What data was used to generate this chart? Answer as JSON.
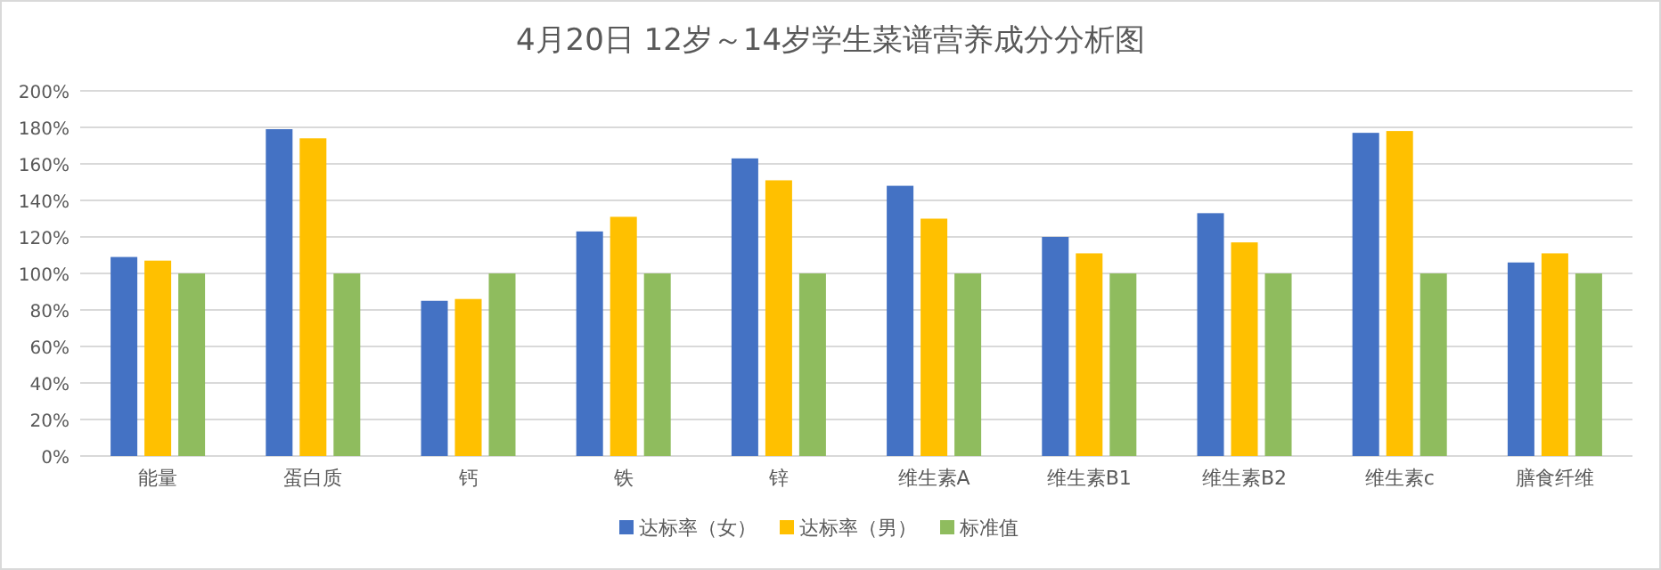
{
  "chart_data": {
    "type": "bar",
    "title": "4月20日 12岁～14岁学生菜谱营养成分分析图",
    "categories": [
      "能量",
      "蛋白质",
      "钙",
      "铁",
      "锌",
      "维生素A",
      "维生素B1",
      "维生素B2",
      "维生素c",
      "膳食纤维"
    ],
    "series": [
      {
        "name": "达标率（女）",
        "color": "#4472c4",
        "values": [
          109,
          179,
          85,
          123,
          163,
          148,
          120,
          133,
          177,
          106
        ]
      },
      {
        "name": "达标率（男）",
        "color": "#ffc000",
        "values": [
          107,
          174,
          86,
          131,
          151,
          130,
          111,
          117,
          178,
          111
        ]
      },
      {
        "name": "标准值",
        "color": "#8fbc5e",
        "values": [
          100,
          100,
          100,
          100,
          100,
          100,
          100,
          100,
          100,
          100
        ]
      }
    ],
    "ylim": [
      0,
      200
    ],
    "yticks": [
      {
        "value": 0,
        "label": "0%"
      },
      {
        "value": 20,
        "label": "20%"
      },
      {
        "value": 40,
        "label": "40%"
      },
      {
        "value": 60,
        "label": "60%"
      },
      {
        "value": 80,
        "label": "80%"
      },
      {
        "value": 100,
        "label": "100%"
      },
      {
        "value": 120,
        "label": "120%"
      },
      {
        "value": 140,
        "label": "140%"
      },
      {
        "value": 160,
        "label": "160%"
      },
      {
        "value": 180,
        "label": "180%"
      },
      {
        "value": 200,
        "label": "200%"
      }
    ],
    "grid": "y",
    "legend": "bottom"
  }
}
